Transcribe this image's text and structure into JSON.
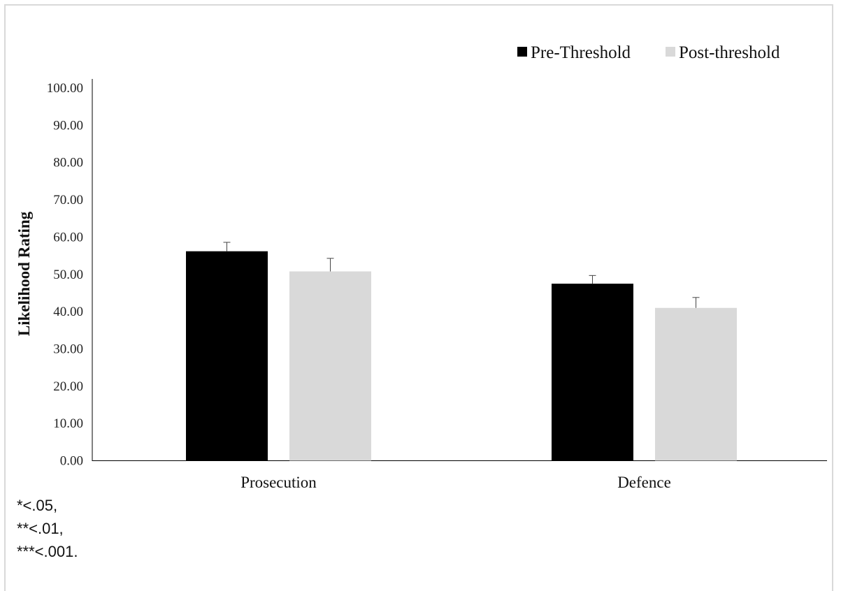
{
  "chart_data": {
    "type": "bar",
    "title": "",
    "xlabel": "",
    "ylabel": "Likelihood Rating",
    "ylim": [
      0,
      100
    ],
    "yticks": [
      "0.00",
      "10.00",
      "20.00",
      "30.00",
      "40.00",
      "50.00",
      "60.00",
      "70.00",
      "80.00",
      "90.00",
      "100.00"
    ],
    "categories": [
      "Prosecution",
      "Defence"
    ],
    "series": [
      {
        "name": "Pre-Threshold",
        "color": "#000000",
        "values": [
          56.2,
          47.5
        ],
        "errors": [
          2.4,
          2.2
        ]
      },
      {
        "name": "Post-threshold",
        "color": "#d9d9d9",
        "values": [
          50.8,
          41.0
        ],
        "errors": [
          3.5,
          2.8
        ]
      }
    ],
    "legend_position": "top-right",
    "grid": false
  },
  "notes": [
    "*<.05,",
    "**<.01,",
    "***<.001."
  ]
}
